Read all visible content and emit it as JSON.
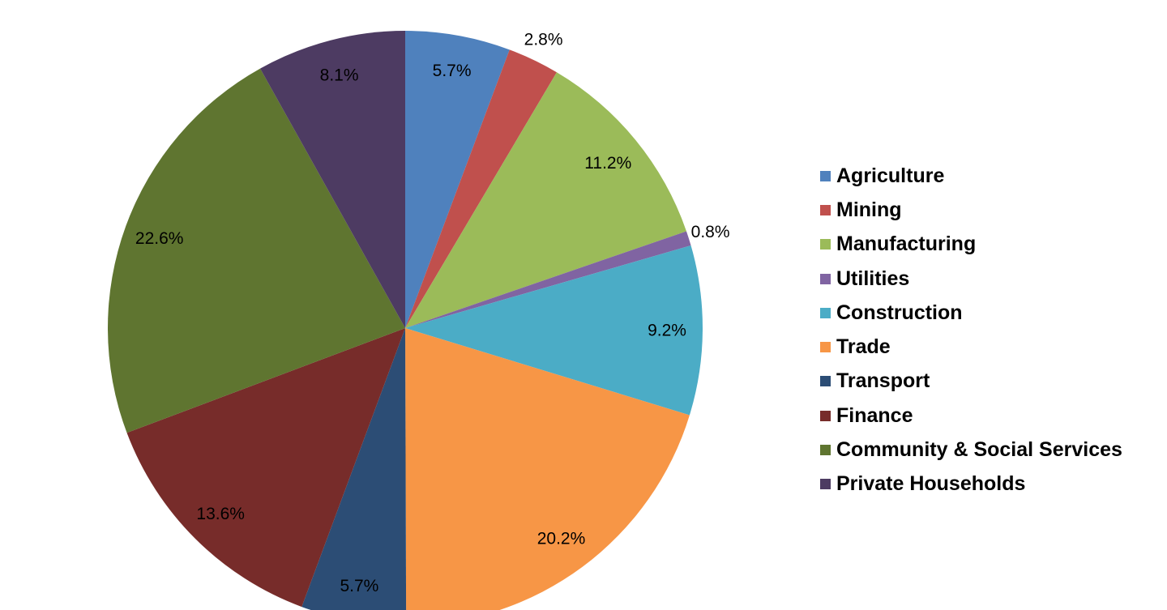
{
  "chart_data": {
    "type": "pie",
    "title": "",
    "categories": [
      "Agriculture",
      "Mining",
      "Manufacturing",
      "Utilities",
      "Construction",
      "Trade",
      "Transport",
      "Finance",
      "Community & Social Services",
      "Private Households"
    ],
    "values": [
      5.7,
      2.8,
      11.2,
      0.8,
      9.2,
      20.2,
      5.7,
      13.6,
      22.6,
      8.1
    ],
    "labels": [
      "5.7%",
      "2.8%",
      "11.2%",
      "0.8%",
      "9.2%",
      "20.2%",
      "5.7%",
      "13.6%",
      "22.6%",
      "8.1%"
    ],
    "colors": [
      "#4F81BD",
      "#C0504D",
      "#9BBB59",
      "#8064A2",
      "#4BACC6",
      "#F79646",
      "#2C4D75",
      "#772C2A",
      "#5F7530",
      "#4D3B62"
    ],
    "start_angle": "12 o'clock, clockwise",
    "legend_position": "right"
  },
  "legend": {
    "items": [
      {
        "label": "Agriculture",
        "color": "#4F81BD"
      },
      {
        "label": "Mining",
        "color": "#C0504D"
      },
      {
        "label": "Manufacturing",
        "color": "#9BBB59"
      },
      {
        "label": "Utilities",
        "color": "#8064A2"
      },
      {
        "label": "Construction",
        "color": "#4BACC6"
      },
      {
        "label": "Trade",
        "color": "#F79646"
      },
      {
        "label": "Transport",
        "color": "#2C4D75"
      },
      {
        "label": "Finance",
        "color": "#772C2A"
      },
      {
        "label": "Community & Social Services",
        "color": "#5F7530"
      },
      {
        "label": "Private Households",
        "color": "#4D3B62"
      }
    ]
  }
}
